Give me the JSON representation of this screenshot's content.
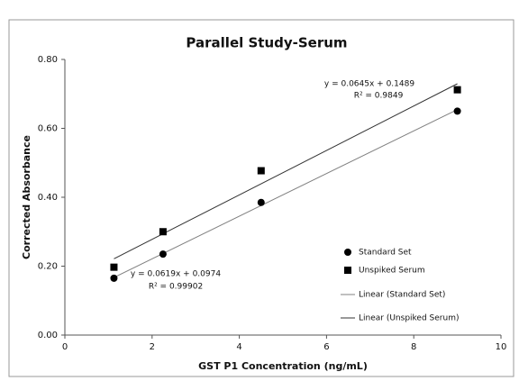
{
  "chart_data": {
    "type": "scatter",
    "title": "Parallel Study-Serum",
    "x_label": "GST P1 Concentration (ng/mL)",
    "y_label": "Corrected Absorbance",
    "xlim": [
      0,
      10
    ],
    "xticks": [
      0,
      2,
      4,
      6,
      8,
      10
    ],
    "ylim": [
      0,
      0.8
    ],
    "yticks": [
      {
        "value": 0,
        "label": "0.00"
      },
      {
        "value": 0.2,
        "label": "0.20"
      },
      {
        "value": 0.4,
        "label": "0.40"
      },
      {
        "value": 0.6,
        "label": "0.60"
      },
      {
        "value": 0.8,
        "label": "0.80"
      }
    ],
    "grid": false,
    "series": [
      {
        "name": "Standard Set",
        "marker": "circle",
        "color": "#000000",
        "x": [
          1.125,
          2.25,
          4.5,
          9
        ],
        "values": [
          0.165,
          0.235,
          0.385,
          0.65
        ],
        "trend": {
          "name": "Linear (Standard Set)",
          "slope": 0.0619,
          "intercept": 0.0974,
          "color": "#808080",
          "equation": "y = 0.0619x + 0.0974",
          "r2": "R² = 0.99902"
        }
      },
      {
        "name": "Unspiked Serum",
        "marker": "square",
        "color": "#000000",
        "x": [
          1.125,
          2.25,
          4.5,
          9
        ],
        "values": [
          0.197,
          0.3,
          0.477,
          0.712
        ],
        "trend": {
          "name": "Linear (Unspiked Serum)",
          "slope": 0.0645,
          "intercept": 0.1489,
          "color": "#333333",
          "equation": "y = 0.0645x + 0.1489",
          "r2": "R² = 0.9849"
        }
      }
    ]
  }
}
